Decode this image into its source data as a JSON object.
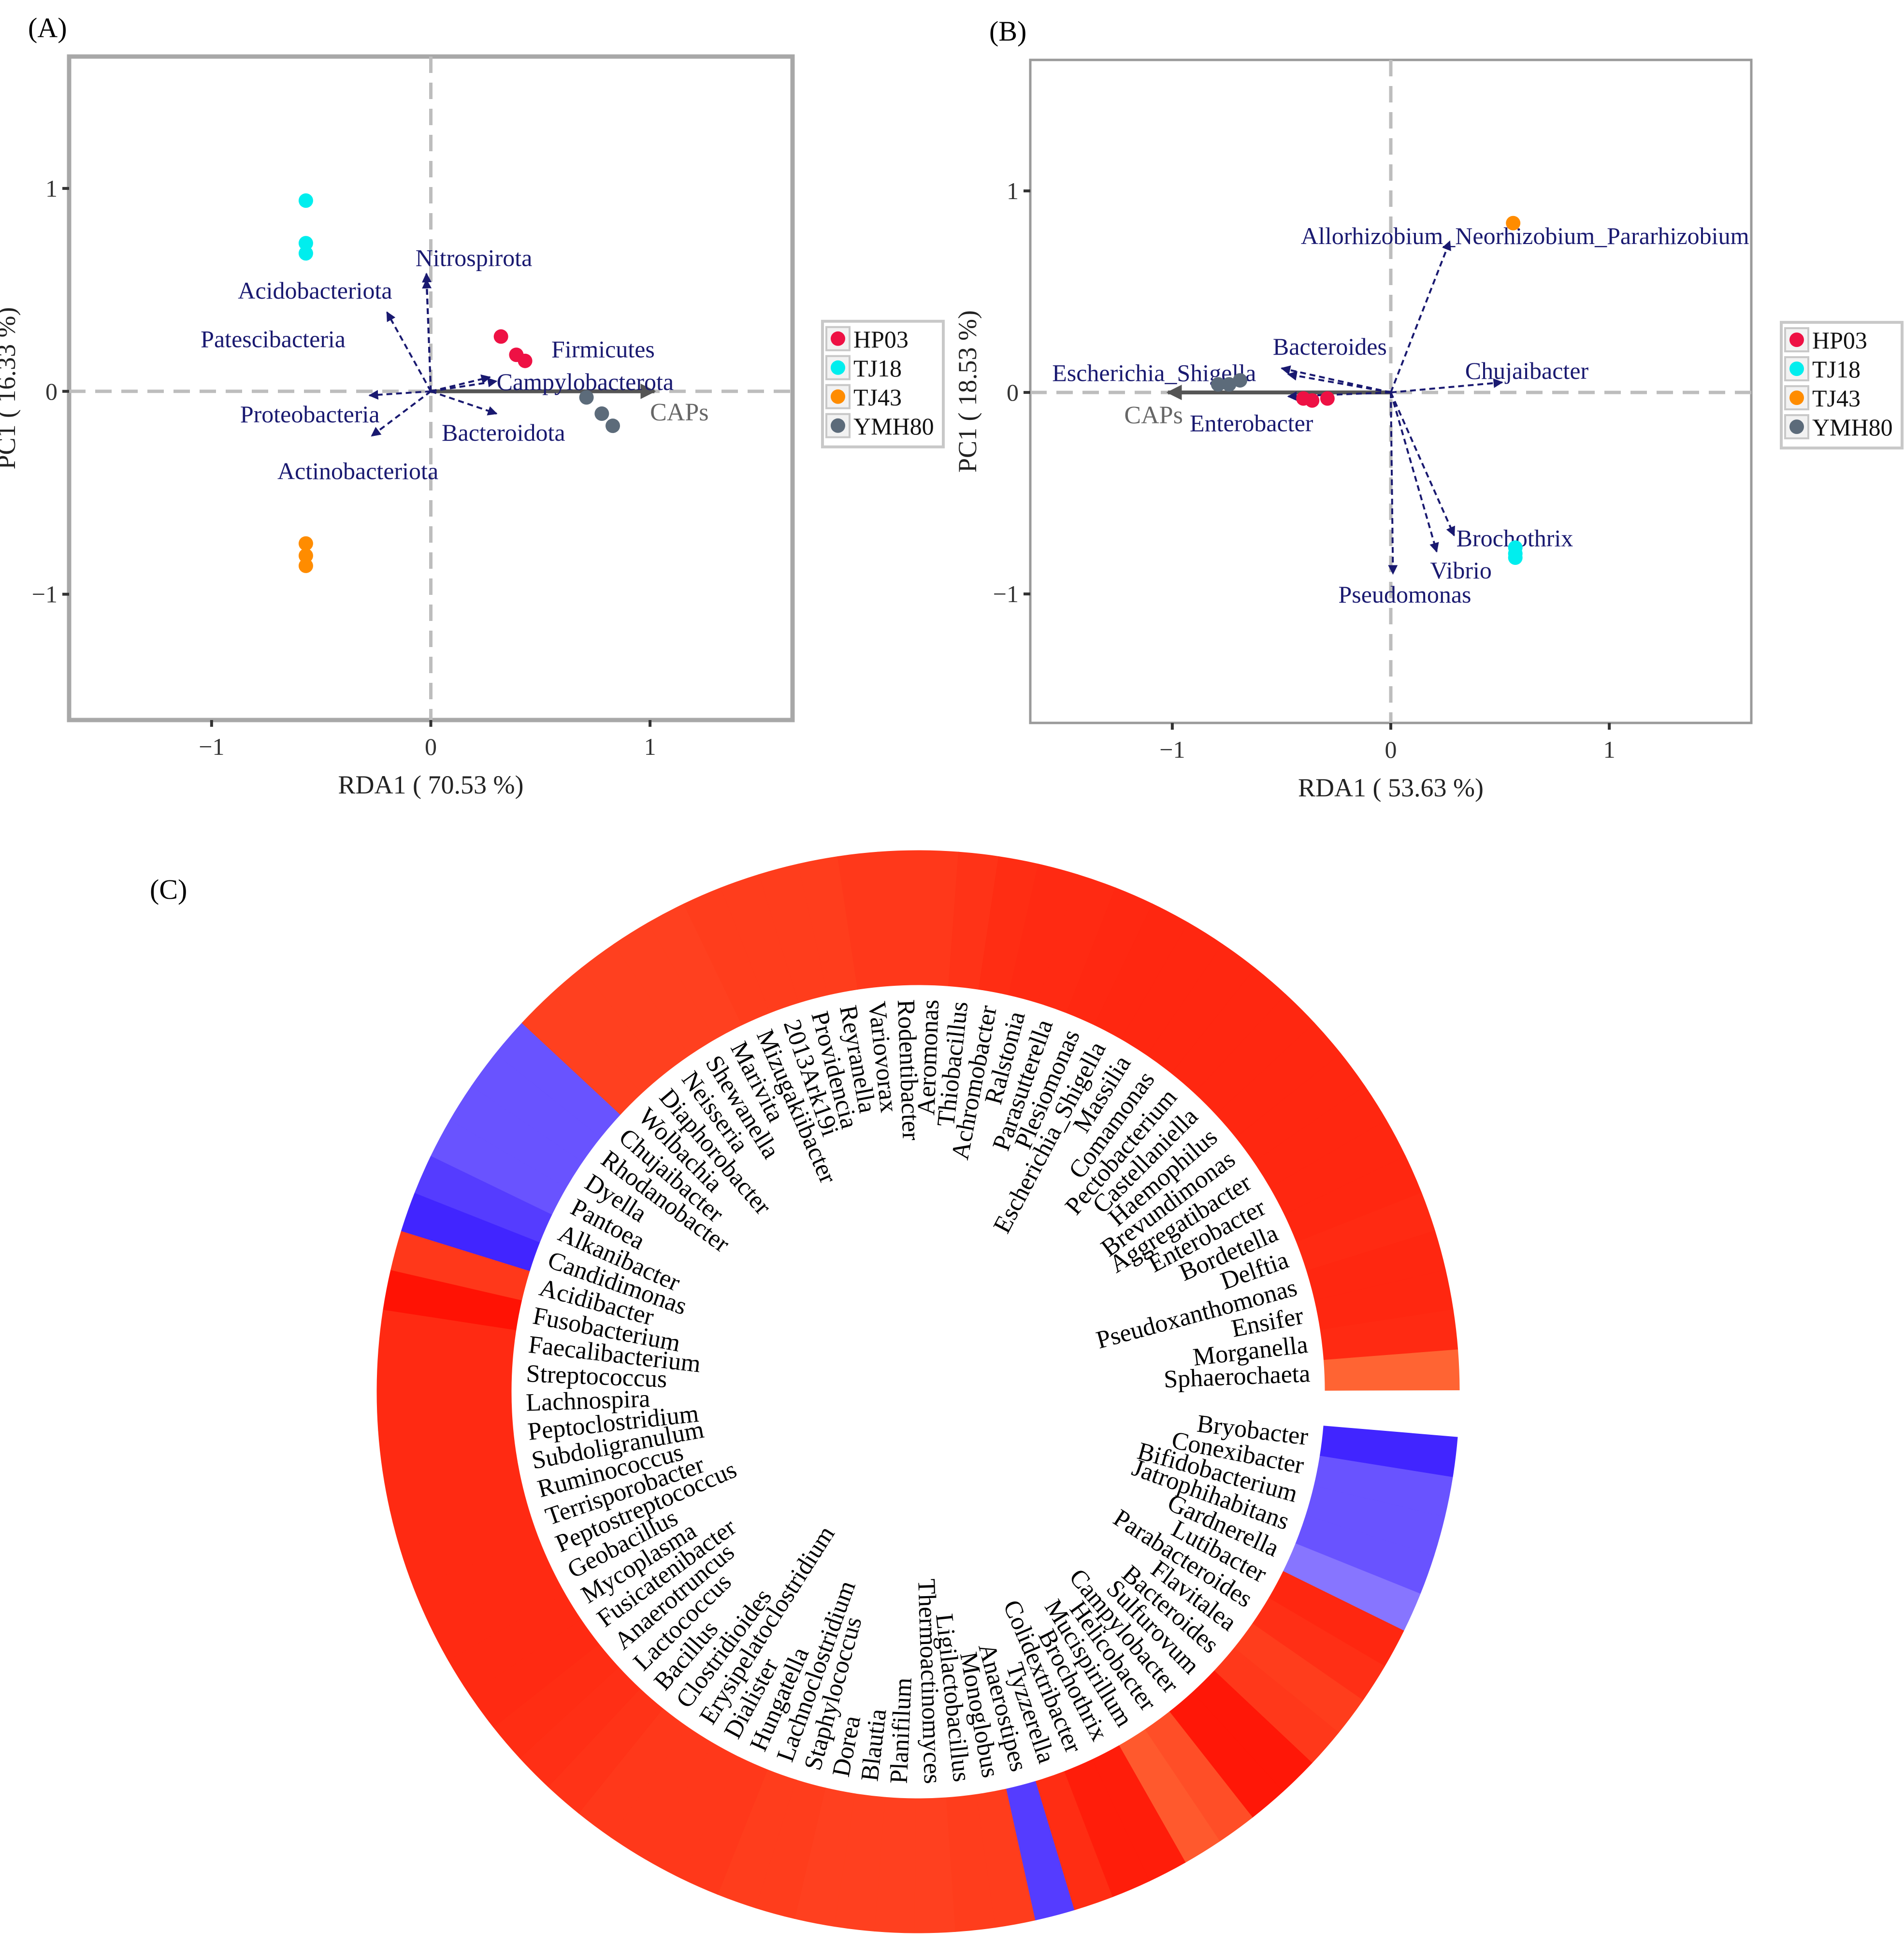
{
  "figure": {
    "legend_title_hidden": "",
    "groups": [
      {
        "name": "HP03",
        "color": "#EE1144"
      },
      {
        "name": "TJ18",
        "color": "#00EEEE"
      },
      {
        "name": "TJ43",
        "color": "#FF8C00"
      },
      {
        "name": "YMH80",
        "color": "#5C6B7A"
      }
    ],
    "arrow_color": "#191970",
    "caps_color": "#555555"
  },
  "chart_data": [
    {
      "panel": "(A)",
      "type": "scatter",
      "subtype": "rda-biplot",
      "xlabel": "RDA1 ( 70.53 %)",
      "ylabel": "PC1 ( 16.33 %)",
      "xlim": [
        -1.65,
        1.65
      ],
      "ylim": [
        -1.62,
        1.65
      ],
      "xticks": [
        -1,
        0,
        1
      ],
      "yticks": [
        -1,
        0,
        1
      ],
      "xtick_labels": [
        "−1",
        "0",
        "1"
      ],
      "ytick_labels": [
        "−1",
        "0",
        "1"
      ],
      "legend": "right",
      "points": [
        {
          "group": "TJ18",
          "x": -0.57,
          "y": 0.94
        },
        {
          "group": "TJ18",
          "x": -0.57,
          "y": 0.73
        },
        {
          "group": "TJ18",
          "x": -0.57,
          "y": 0.68
        },
        {
          "group": "TJ43",
          "x": -0.57,
          "y": -0.75
        },
        {
          "group": "TJ43",
          "x": -0.57,
          "y": -0.81
        },
        {
          "group": "TJ43",
          "x": -0.57,
          "y": -0.86
        },
        {
          "group": "HP03",
          "x": 0.32,
          "y": 0.27
        },
        {
          "group": "HP03",
          "x": 0.39,
          "y": 0.18
        },
        {
          "group": "HP03",
          "x": 0.43,
          "y": 0.15
        },
        {
          "group": "YMH80",
          "x": 0.71,
          "y": -0.03
        },
        {
          "group": "YMH80",
          "x": 0.78,
          "y": -0.11
        },
        {
          "group": "YMH80",
          "x": 0.83,
          "y": -0.17
        }
      ],
      "vectors": [
        {
          "name": "Nitrospirota",
          "x": -0.02,
          "y": 0.58,
          "lx": -0.07,
          "ly": 0.66,
          "anchor": "start"
        },
        {
          "name": "Acidobacteriota",
          "x": -0.02,
          "y": 0.55,
          "lx": -0.88,
          "ly": 0.5,
          "anchor": "start"
        },
        {
          "name": "Patescibacteria",
          "x": -0.2,
          "y": 0.39,
          "lx": -1.05,
          "ly": 0.26,
          "anchor": "start"
        },
        {
          "name": "Firmicutes",
          "x": 0.27,
          "y": 0.07,
          "lx": 0.55,
          "ly": 0.21,
          "anchor": "start"
        },
        {
          "name": "Campylobacterota",
          "x": 0.3,
          "y": 0.05,
          "lx": 0.3,
          "ly": 0.05,
          "anchor": "start"
        },
        {
          "name": "Proteobacteria",
          "x": -0.28,
          "y": -0.02,
          "lx": -0.87,
          "ly": -0.11,
          "anchor": "start"
        },
        {
          "name": "Bacteroidota",
          "x": 0.3,
          "y": -0.11,
          "lx": 0.05,
          "ly": -0.2,
          "anchor": "start"
        },
        {
          "name": "Actinobacteriota",
          "x": -0.27,
          "y": -0.22,
          "lx": -0.7,
          "ly": -0.39,
          "anchor": "start"
        }
      ],
      "constraint": {
        "name": "CAPs",
        "x": 1.02,
        "y": 0.0,
        "lx": 1.0,
        "ly": -0.1
      }
    },
    {
      "panel": "(B)",
      "type": "scatter",
      "subtype": "rda-biplot",
      "xlabel": "RDA1 ( 53.63 %)",
      "ylabel": "PC1 ( 18.53 %)",
      "xlim": [
        -1.65,
        1.65
      ],
      "ylim": [
        -1.64,
        1.65
      ],
      "xticks": [
        -1,
        0,
        1
      ],
      "yticks": [
        -1,
        0,
        1
      ],
      "xtick_labels": [
        "−1",
        "0",
        "1"
      ],
      "ytick_labels": [
        "−1",
        "0",
        "1"
      ],
      "legend": "right",
      "points": [
        {
          "group": "TJ43",
          "x": 0.56,
          "y": 0.84
        },
        {
          "group": "TJ18",
          "x": 0.57,
          "y": -0.77
        },
        {
          "group": "TJ18",
          "x": 0.57,
          "y": -0.8
        },
        {
          "group": "TJ18",
          "x": 0.57,
          "y": -0.82
        },
        {
          "group": "YMH80",
          "x": -0.79,
          "y": 0.04
        },
        {
          "group": "YMH80",
          "x": -0.74,
          "y": 0.04
        },
        {
          "group": "YMH80",
          "x": -0.69,
          "y": 0.06
        },
        {
          "group": "HP03",
          "x": -0.4,
          "y": -0.03
        },
        {
          "group": "HP03",
          "x": -0.36,
          "y": -0.04
        },
        {
          "group": "HP03",
          "x": -0.29,
          "y": -0.03
        }
      ],
      "vectors": [
        {
          "name": "Allorhizobium_Neorhizobium_Pararhizobium",
          "x": 0.27,
          "y": 0.75,
          "lx": 1.64,
          "ly": 0.78,
          "anchor": "end"
        },
        {
          "name": "Bacteroides",
          "x": -0.5,
          "y": 0.12,
          "lx": -0.54,
          "ly": 0.23,
          "anchor": "start"
        },
        {
          "name": "Escherichia_Shigella",
          "x": -0.47,
          "y": 0.09,
          "lx": -1.55,
          "ly": 0.1,
          "anchor": "start"
        },
        {
          "name": "Chujaibacter",
          "x": 0.51,
          "y": 0.05,
          "lx": 0.34,
          "ly": 0.11,
          "anchor": "start"
        },
        {
          "name": "Enterobacter",
          "x": -0.47,
          "y": -0.02,
          "lx": -0.92,
          "ly": -0.15,
          "anchor": "start"
        },
        {
          "name": "Brochothrix",
          "x": 0.29,
          "y": -0.71,
          "lx": 0.3,
          "ly": -0.72,
          "anchor": "start"
        },
        {
          "name": "Vibrio",
          "x": 0.21,
          "y": -0.79,
          "lx": 0.18,
          "ly": -0.88,
          "anchor": "start"
        },
        {
          "name": "Pseudomonas",
          "x": 0.01,
          "y": -0.9,
          "lx": -0.24,
          "ly": -1.0,
          "anchor": "start"
        }
      ],
      "constraint": {
        "name": "CAPs",
        "x": -1.02,
        "y": 0.0,
        "lx": -1.22,
        "ly": -0.11
      }
    },
    {
      "panel": "(C)",
      "type": "heatmap",
      "subtype": "circular-correlation",
      "gap_after": "Sphaerochaeta",
      "genera": [
        {
          "name": "Aeromonas",
          "r": 0.8
        },
        {
          "name": "Thiobacillus",
          "r": 0.82
        },
        {
          "name": "Achromobacter",
          "r": 0.85
        },
        {
          "name": "Ralstonia",
          "r": 0.86
        },
        {
          "name": "Parasutterella",
          "r": 0.86
        },
        {
          "name": "Plesiomonas",
          "r": 0.87
        },
        {
          "name": "Escherichia_Shigella",
          "r": 0.88
        },
        {
          "name": "Massilia",
          "r": 0.88
        },
        {
          "name": "Comamonas",
          "r": 0.88
        },
        {
          "name": "Pectobacterium",
          "r": 0.88
        },
        {
          "name": "Castellaniella",
          "r": 0.88
        },
        {
          "name": "Haemophilus",
          "r": 0.88
        },
        {
          "name": "Brevundimonas",
          "r": 0.88
        },
        {
          "name": "Aggregatibacter",
          "r": 0.88
        },
        {
          "name": "Enterobacter",
          "r": 0.88
        },
        {
          "name": "Bordetella",
          "r": 0.88
        },
        {
          "name": "Delftia",
          "r": 0.86
        },
        {
          "name": "Pseudoxanthomonas",
          "r": 0.88
        },
        {
          "name": "Ensifer",
          "r": 0.88
        },
        {
          "name": "Morganella",
          "r": 0.86
        },
        {
          "name": "Sphaerochaeta",
          "r": 0.6
        },
        {
          "name": "Bryobacter",
          "r": -0.95
        },
        {
          "name": "Conexibacter",
          "r": -0.75
        },
        {
          "name": "Bifidobacterium",
          "r": -0.75
        },
        {
          "name": "Jatrophihabitans",
          "r": -0.75
        },
        {
          "name": "Gardnerella",
          "r": -0.6
        },
        {
          "name": "Lutibacter",
          "r": 0.88
        },
        {
          "name": "Parabacteroides",
          "r": 0.84
        },
        {
          "name": "Flavitalea",
          "r": 0.78
        },
        {
          "name": "Bacteroides",
          "r": 0.8
        },
        {
          "name": "Sulfurovum",
          "r": 0.95
        },
        {
          "name": "Campylobacter",
          "r": 0.95
        },
        {
          "name": "Helicobacter",
          "r": 0.7
        },
        {
          "name": "Mucispirillum",
          "r": 0.65
        },
        {
          "name": "Brochothrix",
          "r": 0.92
        },
        {
          "name": "Colidextribacter",
          "r": 0.92
        },
        {
          "name": "Tyzzerella",
          "r": 0.85
        },
        {
          "name": "Anaerostipes",
          "r": -0.85
        },
        {
          "name": "Monoglobus",
          "r": 0.78
        },
        {
          "name": "Ligilactobacillus",
          "r": 0.78
        },
        {
          "name": "Thermoactinomyces",
          "r": 0.76
        },
        {
          "name": "Planifilum",
          "r": 0.76
        },
        {
          "name": "Blautia",
          "r": 0.76
        },
        {
          "name": "Dorea",
          "r": 0.76
        },
        {
          "name": "Staphylococcus",
          "r": 0.78
        },
        {
          "name": "Lachnoclostridium",
          "r": 0.78
        },
        {
          "name": "Hungatella",
          "r": 0.8
        },
        {
          "name": "Dialister",
          "r": 0.8
        },
        {
          "name": "Erysipelatoclostridium",
          "r": 0.8
        },
        {
          "name": "Clostridioides",
          "r": 0.8
        },
        {
          "name": "Bacillus",
          "r": 0.82
        },
        {
          "name": "Lactococcus",
          "r": 0.84
        },
        {
          "name": "Anaerotruncus",
          "r": 0.85
        },
        {
          "name": "Fusicatenibacter",
          "r": 0.86
        },
        {
          "name": "Mycoplasma",
          "r": 0.86
        },
        {
          "name": "Geobacillus",
          "r": 0.86
        },
        {
          "name": "Peptostreptococcus",
          "r": 0.86
        },
        {
          "name": "Terrisporobacter",
          "r": 0.86
        },
        {
          "name": "Ruminococcus",
          "r": 0.86
        },
        {
          "name": "Subdoligranulum",
          "r": 0.86
        },
        {
          "name": "Peptoclostridium",
          "r": 0.86
        },
        {
          "name": "Lachnospira",
          "r": 0.86
        },
        {
          "name": "Streptococcus",
          "r": 0.86
        },
        {
          "name": "Faecalibacterium",
          "r": 0.86
        },
        {
          "name": "Fusobacterium",
          "r": 0.97
        },
        {
          "name": "Acidibacter",
          "r": 0.8
        },
        {
          "name": "Candidimonas",
          "r": -0.95
        },
        {
          "name": "Alkanibacter",
          "r": -0.85
        },
        {
          "name": "Pantoea",
          "r": -0.75
        },
        {
          "name": "Dyella",
          "r": -0.75
        },
        {
          "name": "Rhodanobacter",
          "r": -0.75
        },
        {
          "name": "Chujaibacter",
          "r": -0.75
        },
        {
          "name": "Wolbachia",
          "r": 0.76
        },
        {
          "name": "Diaphorobacter",
          "r": 0.76
        },
        {
          "name": "Neisseria",
          "r": 0.76
        },
        {
          "name": "Shewanella",
          "r": 0.76
        },
        {
          "name": "Marivita",
          "r": 0.76
        },
        {
          "name": "Mizugakiibacter",
          "r": 0.78
        },
        {
          "name": "2013Ark19i",
          "r": 0.78
        },
        {
          "name": "Providencia",
          "r": 0.78
        },
        {
          "name": "Reyranella",
          "r": 0.78
        },
        {
          "name": "Variovorax",
          "r": 0.8
        },
        {
          "name": "Rodentibacter",
          "r": 0.8
        }
      ]
    }
  ]
}
